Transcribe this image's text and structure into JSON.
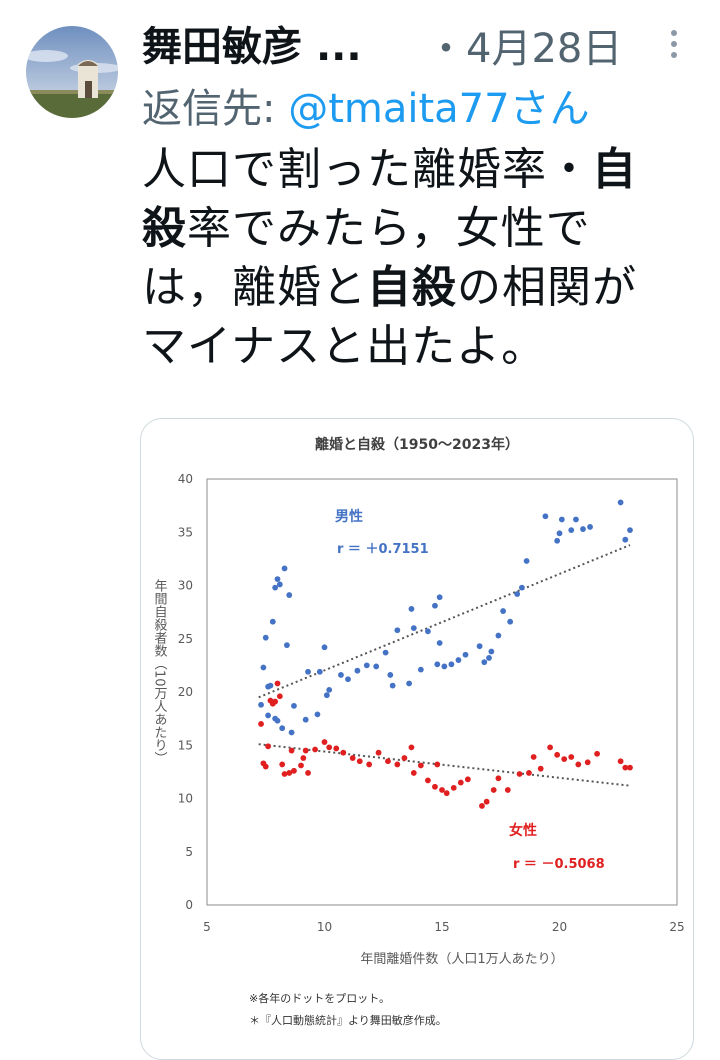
{
  "tweet": {
    "author_name": "舞田敏彦",
    "name_ellipsis": "...",
    "date": "・4月28日",
    "reply_prefix": "返信先:",
    "reply_handle": "@tmaita77さん",
    "text_lines": [
      [
        {
          "t": "人口で割った離婚率・"
        },
        {
          "t": "自",
          "b": true
        }
      ],
      [
        {
          "t": "殺",
          "b": true
        },
        {
          "t": "率でみたら，女性で"
        }
      ],
      [
        {
          "t": "は，離婚と"
        },
        {
          "t": "自殺",
          "b": true
        },
        {
          "t": "の相関が"
        }
      ],
      [
        {
          "t": "マイナスと出たよ。"
        }
      ]
    ]
  },
  "colors": {
    "male": "#4472c4",
    "female": "#e02020",
    "trend": "#555555",
    "link": "#1d9bf0",
    "muted": "#536471"
  },
  "chart_data": {
    "type": "scatter",
    "title": "離婚と自殺（1950～2023年）",
    "xlabel": "年間離婚件数（人口1万人あたり）",
    "ylabel": "年間自殺者数（10万人あたり）",
    "xlim": [
      5,
      25
    ],
    "ylim": [
      0,
      40
    ],
    "xticks": [
      "5",
      "10",
      "15",
      "20",
      "25"
    ],
    "yticks": [
      "0",
      "5",
      "10",
      "15",
      "20",
      "25",
      "30",
      "35",
      "40"
    ],
    "grid": false,
    "footnotes": [
      "※各年のドットをプロット。",
      "＊『人口動態統計』より舞田敏彦作成。"
    ],
    "series": [
      {
        "name": "男性",
        "r_label": "r ＝ ＋0.7151",
        "color": "#4472c4",
        "trend": [
          [
            7.2,
            19.5
          ],
          [
            23.0,
            33.8
          ]
        ],
        "points": [
          [
            7.3,
            18.8
          ],
          [
            7.4,
            22.3
          ],
          [
            7.5,
            25.1
          ],
          [
            7.6,
            20.5
          ],
          [
            7.8,
            26.6
          ],
          [
            7.9,
            29.8
          ],
          [
            8.0,
            30.6
          ],
          [
            8.1,
            30.1
          ],
          [
            8.3,
            31.6
          ],
          [
            8.5,
            29.1
          ],
          [
            8.4,
            24.4
          ],
          [
            8.2,
            16.6
          ],
          [
            8.6,
            16.2
          ],
          [
            7.9,
            17.5
          ],
          [
            8.0,
            17.3
          ],
          [
            7.6,
            17.8
          ],
          [
            8.7,
            18.7
          ],
          [
            9.2,
            17.4
          ],
          [
            9.3,
            21.9
          ],
          [
            9.7,
            17.9
          ],
          [
            9.8,
            21.9
          ],
          [
            10.0,
            24.2
          ],
          [
            10.2,
            20.2
          ],
          [
            10.1,
            19.7
          ],
          [
            10.7,
            21.6
          ],
          [
            11.0,
            21.2
          ],
          [
            11.4,
            22.0
          ],
          [
            11.8,
            22.5
          ],
          [
            12.2,
            22.4
          ],
          [
            12.6,
            23.7
          ],
          [
            12.8,
            21.6
          ],
          [
            13.1,
            25.8
          ],
          [
            13.6,
            20.8
          ],
          [
            13.7,
            27.8
          ],
          [
            13.8,
            26.0
          ],
          [
            14.1,
            22.1
          ],
          [
            14.4,
            25.7
          ],
          [
            14.8,
            22.6
          ],
          [
            14.9,
            28.9
          ],
          [
            14.7,
            28.1
          ],
          [
            14.9,
            24.6
          ],
          [
            15.1,
            22.4
          ],
          [
            15.4,
            22.6
          ],
          [
            15.7,
            23.0
          ],
          [
            16.0,
            23.5
          ],
          [
            16.6,
            24.3
          ],
          [
            16.8,
            22.8
          ],
          [
            17.0,
            23.2
          ],
          [
            17.1,
            23.8
          ],
          [
            17.4,
            25.3
          ],
          [
            17.6,
            27.6
          ],
          [
            17.9,
            26.6
          ],
          [
            18.2,
            29.2
          ],
          [
            18.4,
            29.8
          ],
          [
            18.6,
            32.3
          ],
          [
            19.4,
            36.5
          ],
          [
            19.9,
            34.2
          ],
          [
            20.0,
            34.9
          ],
          [
            20.1,
            36.2
          ],
          [
            20.5,
            35.2
          ],
          [
            20.7,
            36.2
          ],
          [
            21.0,
            35.3
          ],
          [
            21.3,
            35.5
          ],
          [
            22.6,
            37.8
          ],
          [
            22.8,
            34.3
          ],
          [
            23.0,
            35.2
          ],
          [
            12.9,
            20.6
          ],
          [
            7.7,
            20.6
          ]
        ]
      },
      {
        "name": "女性",
        "r_label": "r ＝ －0.5068",
        "color": "#e02020",
        "trend": [
          [
            7.2,
            15.1
          ],
          [
            23.0,
            11.2
          ]
        ],
        "points": [
          [
            7.3,
            17.0
          ],
          [
            7.4,
            13.3
          ],
          [
            7.5,
            13.0
          ],
          [
            7.6,
            14.9
          ],
          [
            7.8,
            18.9
          ],
          [
            7.9,
            19.1
          ],
          [
            8.0,
            20.8
          ],
          [
            8.1,
            19.6
          ],
          [
            8.2,
            13.2
          ],
          [
            8.3,
            12.3
          ],
          [
            8.5,
            12.4
          ],
          [
            8.6,
            14.5
          ],
          [
            8.7,
            12.6
          ],
          [
            9.0,
            13.1
          ],
          [
            9.2,
            14.5
          ],
          [
            9.3,
            12.4
          ],
          [
            9.6,
            14.6
          ],
          [
            10.0,
            15.3
          ],
          [
            10.2,
            14.8
          ],
          [
            10.5,
            14.7
          ],
          [
            10.8,
            14.3
          ],
          [
            11.2,
            13.8
          ],
          [
            11.5,
            13.5
          ],
          [
            11.9,
            13.2
          ],
          [
            12.3,
            14.3
          ],
          [
            12.7,
            13.5
          ],
          [
            13.1,
            13.2
          ],
          [
            13.4,
            13.8
          ],
          [
            13.7,
            14.8
          ],
          [
            13.8,
            12.4
          ],
          [
            14.1,
            13.1
          ],
          [
            14.4,
            11.7
          ],
          [
            14.7,
            11.1
          ],
          [
            14.8,
            13.2
          ],
          [
            15.0,
            10.8
          ],
          [
            15.2,
            10.5
          ],
          [
            15.5,
            11.0
          ],
          [
            15.8,
            11.5
          ],
          [
            16.1,
            11.8
          ],
          [
            16.7,
            9.3
          ],
          [
            16.9,
            9.7
          ],
          [
            17.2,
            10.8
          ],
          [
            17.4,
            11.9
          ],
          [
            17.8,
            10.8
          ],
          [
            18.3,
            12.3
          ],
          [
            18.7,
            12.4
          ],
          [
            18.9,
            13.9
          ],
          [
            19.2,
            12.8
          ],
          [
            19.6,
            14.8
          ],
          [
            19.9,
            14.1
          ],
          [
            20.2,
            13.7
          ],
          [
            20.5,
            13.9
          ],
          [
            20.8,
            13.2
          ],
          [
            21.2,
            13.4
          ],
          [
            21.6,
            14.2
          ],
          [
            22.6,
            13.5
          ],
          [
            22.8,
            12.9
          ],
          [
            23.0,
            12.9
          ],
          [
            9.1,
            13.8
          ],
          [
            7.7,
            19.2
          ]
        ]
      }
    ]
  }
}
